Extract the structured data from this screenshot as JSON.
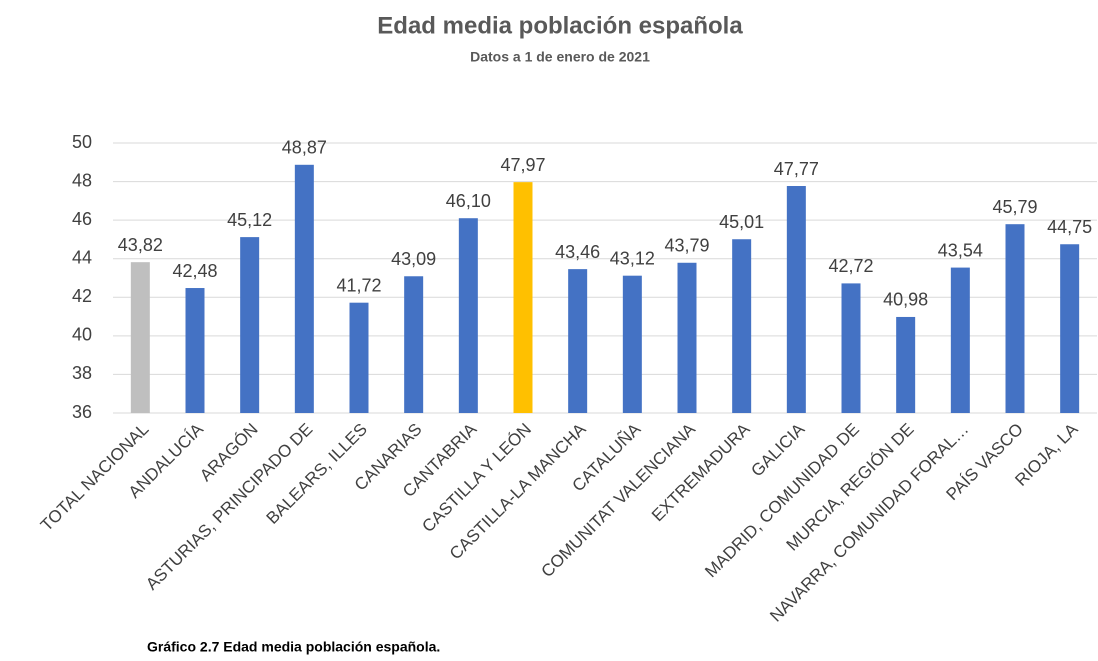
{
  "chart_data": {
    "type": "bar",
    "title": "Edad media población española",
    "subtitle": "Datos a 1 de enero de 2021",
    "caption": "Gráfico 2.7 Edad media población española.",
    "categories": [
      "TOTAL NACIONAL",
      "ANDALUCÍA",
      "ARAGÓN",
      "ASTURIAS, PRINCIPADO DE",
      "BALEARS, ILLES",
      "CANARIAS",
      "CANTABRIA",
      "CASTILLA Y LEÓN",
      "CASTILLA-LA MANCHA",
      "CATALUÑA",
      "COMUNITAT VALENCIANA",
      "EXTREMADURA",
      "GALICIA",
      "MADRID, COMUNIDAD DE",
      "MURCIA, REGIÓN DE",
      "NAVARRA, COMUNIDAD FORAL…",
      "PAÍS VASCO",
      "RIOJA, LA"
    ],
    "values": [
      43.82,
      42.48,
      45.12,
      48.87,
      41.72,
      43.09,
      46.1,
      47.97,
      43.46,
      43.12,
      43.79,
      45.01,
      47.77,
      42.72,
      40.98,
      43.54,
      45.79,
      44.75
    ],
    "value_labels": [
      "43,82",
      "42,48",
      "45,12",
      "48,87",
      "41,72",
      "43,09",
      "46,10",
      "47,97",
      "43,46",
      "43,12",
      "43,79",
      "45,01",
      "47,77",
      "42,72",
      "40,98",
      "43,54",
      "45,79",
      "44,75"
    ],
    "colors": [
      "#bfbfbf",
      "#4472c4",
      "#4472c4",
      "#4472c4",
      "#4472c4",
      "#4472c4",
      "#4472c4",
      "#ffc000",
      "#4472c4",
      "#4472c4",
      "#4472c4",
      "#4472c4",
      "#4472c4",
      "#4472c4",
      "#4472c4",
      "#4472c4",
      "#4472c4",
      "#4472c4"
    ],
    "ylim": [
      36,
      50
    ],
    "yticks": [
      36,
      38,
      40,
      42,
      44,
      46,
      48,
      50
    ],
    "grid": true
  }
}
